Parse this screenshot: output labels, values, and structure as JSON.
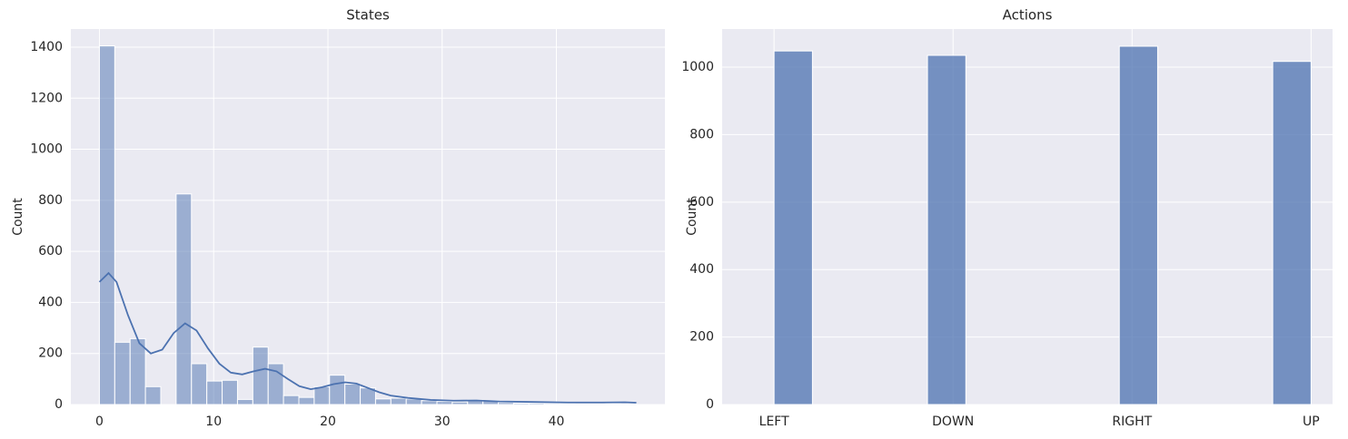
{
  "chart_data": [
    {
      "type": "histogram",
      "title": "States",
      "y_label": "Count",
      "color": "#4c72b0",
      "opacity": 0.5,
      "grid": true,
      "bins": [
        0,
        1.343,
        2.686,
        4.029,
        5.371,
        6.714,
        8.057,
        9.4,
        10.743,
        12.086,
        13.429,
        14.771,
        16.114,
        17.457,
        18.8,
        20.143,
        21.486,
        22.829,
        24.171,
        25.514,
        26.857,
        28.2,
        29.543,
        30.886,
        32.229,
        33.571,
        34.914,
        36.257,
        37.6,
        38.943,
        40.286,
        41.629,
        42.971,
        44.314,
        45.657,
        47
      ],
      "values": [
        1405,
        244,
        258,
        70,
        0,
        825,
        160,
        92,
        95,
        20,
        225,
        160,
        35,
        28,
        70,
        115,
        80,
        65,
        22,
        25,
        22,
        15,
        12,
        10,
        18,
        15,
        8,
        5,
        5,
        4,
        3,
        2,
        2,
        3,
        2
      ],
      "kde": {
        "x": [
          0,
          0.8,
          1.5,
          2.5,
          3.5,
          4.5,
          5.5,
          6.5,
          7.5,
          8.5,
          9.5,
          10.5,
          11.5,
          12.5,
          13.5,
          14.5,
          15.5,
          16.5,
          17.5,
          18.5,
          19.5,
          20.5,
          21.5,
          22.5,
          23.5,
          24.5,
          25.5,
          27,
          29,
          31,
          33,
          35,
          38,
          41,
          44,
          46,
          47
        ],
        "values": [
          480,
          515,
          480,
          350,
          240,
          200,
          215,
          280,
          318,
          290,
          220,
          160,
          125,
          118,
          130,
          140,
          130,
          100,
          72,
          60,
          68,
          80,
          87,
          82,
          65,
          48,
          35,
          26,
          18,
          15,
          16,
          12,
          10,
          8,
          8,
          9,
          7
        ]
      },
      "xlim": [
        -2.5,
        49.5
      ],
      "xticks": [
        0,
        10,
        20,
        30,
        40
      ],
      "ylim": [
        0,
        1471
      ],
      "yticks": [
        0,
        200,
        400,
        600,
        800,
        1000,
        1200,
        1400
      ]
    },
    {
      "type": "histogram",
      "title": "Actions",
      "y_label": "Count",
      "color": "#4c72b0",
      "opacity": 0.75,
      "grid": true,
      "bins": [
        0,
        0.2143,
        0.4286,
        0.6429,
        0.8571,
        1.0714,
        1.2857,
        1.5,
        1.7143,
        1.9286,
        2.1429,
        2.3571,
        2.5714,
        2.7857,
        3
      ],
      "values": [
        1048,
        0,
        0,
        0,
        1035,
        0,
        0,
        0,
        0,
        1062,
        0,
        0,
        0,
        1017
      ],
      "xlim": [
        -0.29,
        3.12
      ],
      "xticks": [
        {
          "value": 0,
          "label": "LEFT"
        },
        {
          "value": 1,
          "label": "DOWN"
        },
        {
          "value": 2,
          "label": "RIGHT"
        },
        {
          "value": 3,
          "label": "UP"
        }
      ],
      "ylim": [
        0,
        1113
      ],
      "yticks": [
        0,
        200,
        400,
        600,
        800,
        1000
      ]
    }
  ]
}
